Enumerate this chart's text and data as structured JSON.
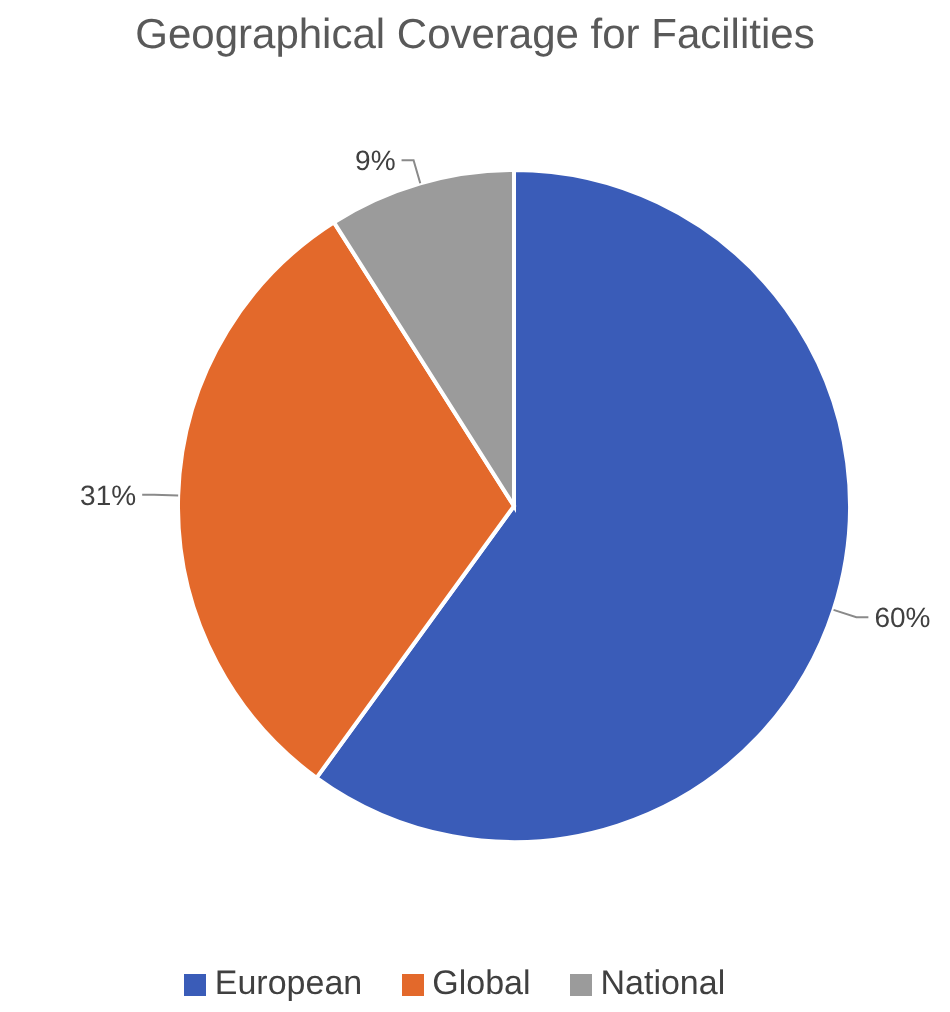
{
  "chart_data": {
    "type": "pie",
    "title": "Geographical Coverage for Facilities",
    "categories": [
      "European",
      "Global",
      "National"
    ],
    "values": [
      60,
      31,
      9
    ],
    "value_labels": [
      "60%",
      "31%",
      "9%"
    ],
    "colors": [
      "#3a5cb8",
      "#e3692b",
      "#9b9b9b"
    ],
    "legend": "bottom"
  }
}
